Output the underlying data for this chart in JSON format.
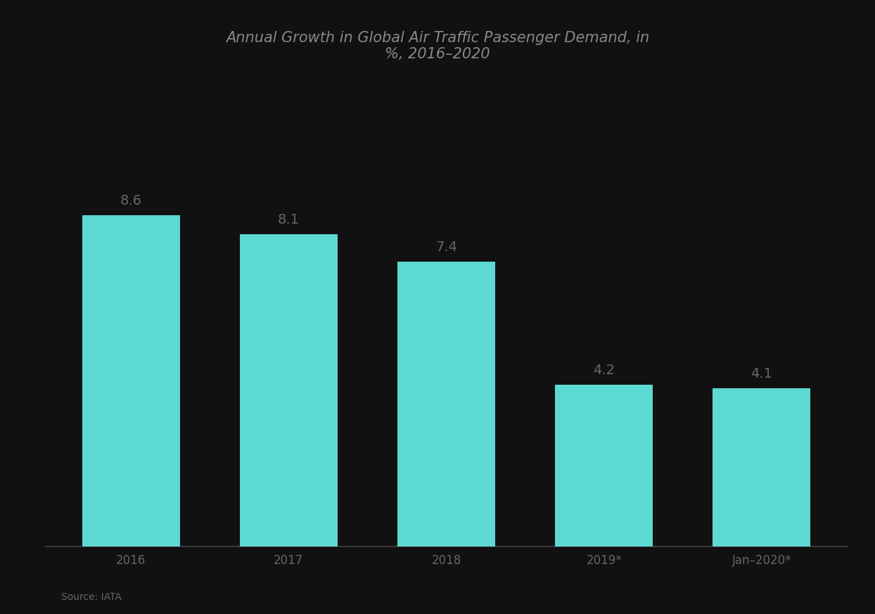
{
  "title_line1": "Annual Growth in Global Air Traffic Passenger Demand, in",
  "title_line2": "%, 2016–2020",
  "categories": [
    "2016",
    "2017",
    "2018",
    "2019*",
    "Jan–2020*"
  ],
  "values": [
    8.6,
    8.1,
    7.4,
    4.2,
    4.1
  ],
  "bar_color": "#5DD9D4",
  "label_color": "#666666",
  "axis_label_color": "#666666",
  "background_color": "#111111",
  "title_color": "#888888",
  "source_text": "Source: IATA",
  "ylim": [
    0,
    12
  ],
  "value_labels": [
    "8.6",
    "8.1",
    "7.4",
    "4.2",
    "4.1"
  ],
  "title_fontsize": 15,
  "label_fontsize": 14,
  "tick_fontsize": 12,
  "bar_width": 0.62
}
